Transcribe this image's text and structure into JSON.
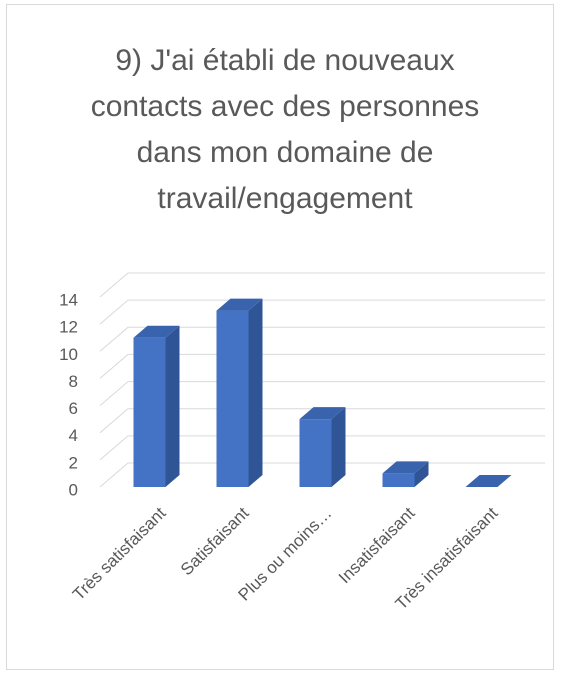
{
  "chart_data": {
    "type": "bar3d",
    "title": "9) J'ai établi de nouveaux contacts avec des personnes dans mon domaine de travail/engagement",
    "categories": [
      "Très satisfaisant",
      "Satisfaisant",
      "Plus ou moins…",
      "Insatisfaisant",
      "Très insatisfaisant"
    ],
    "values": [
      11,
      13,
      5,
      1,
      0
    ],
    "color": "#4472c4",
    "ylim": [
      0,
      14
    ],
    "yticks": [
      0,
      2,
      4,
      6,
      8,
      10,
      12,
      14
    ],
    "grid": true
  }
}
